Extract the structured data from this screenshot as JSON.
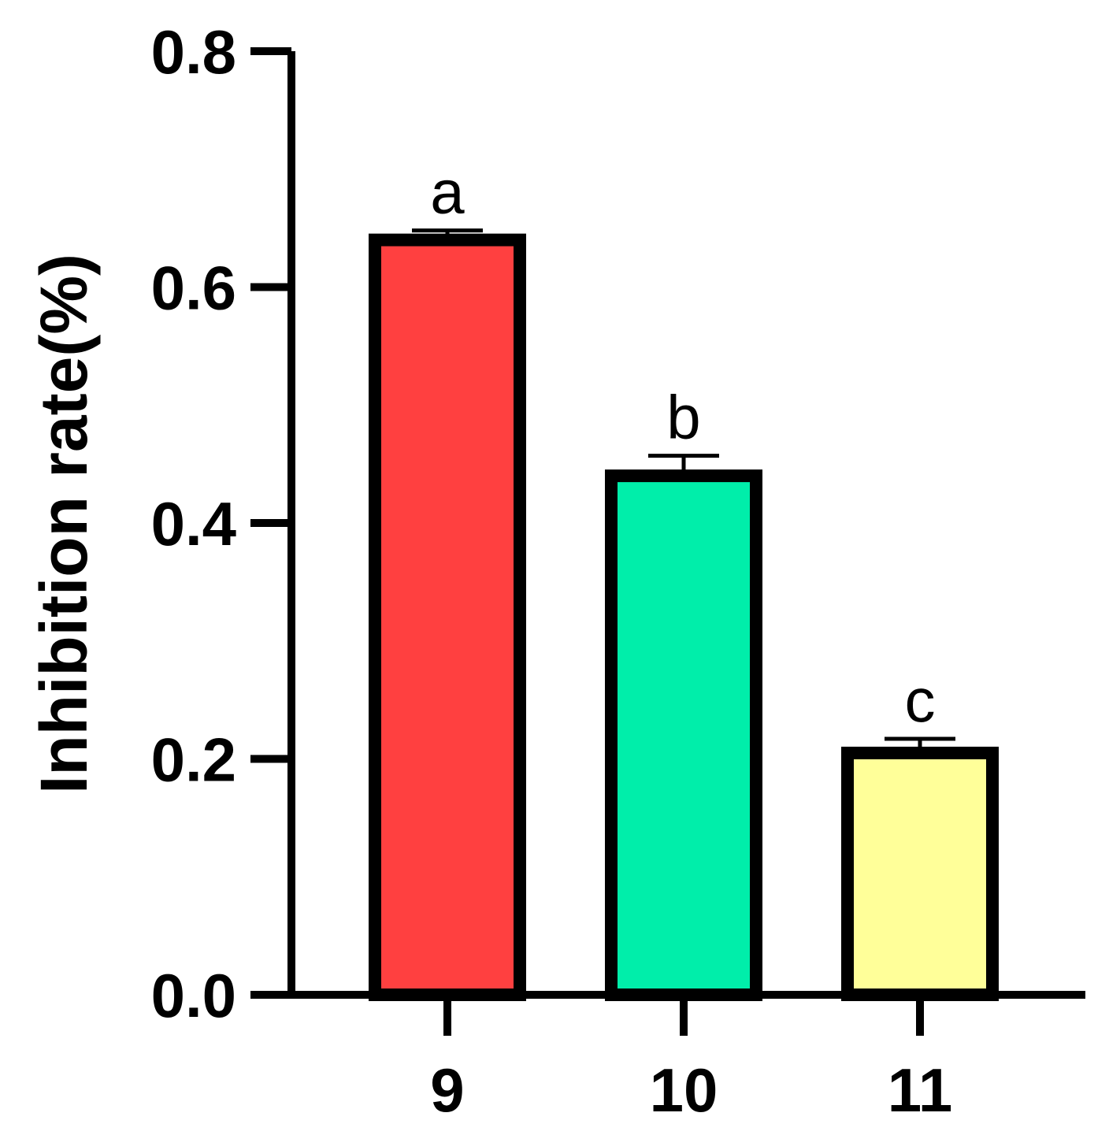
{
  "chart_data": {
    "type": "bar",
    "categories": [
      "9",
      "10",
      "11"
    ],
    "values": [
      0.64,
      0.44,
      0.205
    ],
    "errors": [
      0.008,
      0.017,
      0.012
    ],
    "significance_labels": [
      "a",
      "b",
      "c"
    ],
    "bar_colors": [
      "#ff4040",
      "#00eeaa",
      "#ffff99"
    ],
    "ylabel": "Inhibition rate(%)",
    "xlabel": "",
    "title": "",
    "ylim": [
      0,
      0.8
    ],
    "yticks": [
      0.0,
      0.2,
      0.4,
      0.6,
      0.8
    ],
    "ytick_labels": [
      "0.0",
      "0.2",
      "0.4",
      "0.6",
      "0.8"
    ],
    "grid": false,
    "legend": "none"
  }
}
